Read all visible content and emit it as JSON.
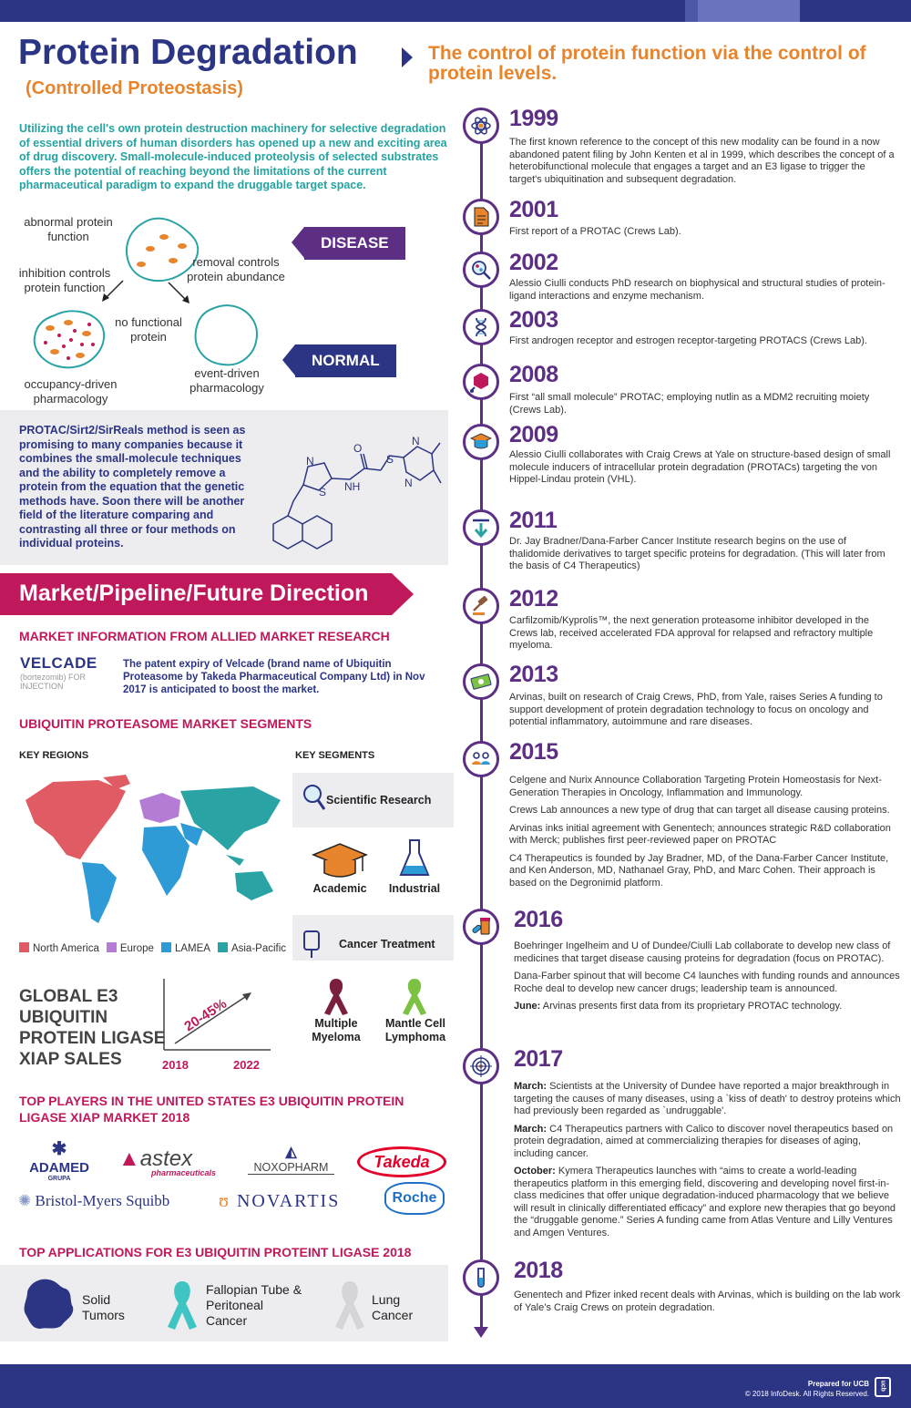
{
  "header": {
    "title": "Protein Degradation",
    "subtitle": "(Controlled Proteostasis)",
    "tagline": "The control of protein function via the control of protein levels."
  },
  "intro": "Utilizing the cell's own protein destruction machinery for selective degradation of essential drivers of human disorders has opened up a new and exciting area of drug discovery. Small-molecule-induced proteolysis of selected substrates offers the potential of reaching beyond the limitations of the current pharmaceutical paradigm to expand the druggable target space.",
  "diagram": {
    "abnormal": "abnormal protein function",
    "inhibition": "inhibition controls protein function",
    "removal": "removal controls protein abundance",
    "no_functional": "no functional protein",
    "occupancy": "occupancy-driven pharmacology",
    "event": "event-driven pharmacology",
    "disease_tag": "DISEASE",
    "normal_tag": "NORMAL"
  },
  "protac": {
    "text": "PROTAC/Sirt2/SirReals method is seen as promising to many companies because it combines the small-molecule techniques and the ability to completely remove a protein from the equation that the genetic methods have. Soon there will be another field of the literature comparing and contrasting all three or four methods on individual proteins.",
    "atoms": {
      "N1": "N",
      "N2": "N",
      "N3": "N",
      "O": "O",
      "S1": "S",
      "S2": "S",
      "NH": "NH"
    }
  },
  "market": {
    "banner": "Market/Pipeline/Future Direction",
    "allied_heading": "MARKET INFORMATION FROM ALLIED MARKET RESEARCH",
    "velcade_logo": "VELCADE",
    "velcade_sub": "(bortezomib) FOR INJECTION",
    "patent": "The patent expiry of Velcade (brand name of Ubiquitin Proteasome by Takeda Pharmaceutical Company Ltd) in Nov 2017 is anticipated to boost the market.",
    "segments_heading": "UBIQUITIN PROTEASOME MARKET SEGMENTS",
    "key_regions": "KEY REGIONS",
    "key_segments": "KEY SEGMENTS",
    "legend": [
      {
        "label": "North America",
        "color": "#e15b64"
      },
      {
        "label": "Europe",
        "color": "#b57cd6"
      },
      {
        "label": "LAMEA",
        "color": "#2f9bd6"
      },
      {
        "label": "Asia-Pacific",
        "color": "#2aa3a5"
      }
    ],
    "e3_lines": [
      "GLOBAL E3",
      "UBIQUITIN",
      "PROTEIN LIGASE",
      "XIAP SALES"
    ],
    "growth": "20-45%",
    "year_start": "2018",
    "year_end": "2022",
    "seg_scientific": "Scientific Research",
    "seg_academic": "Academic",
    "seg_industrial": "Industrial",
    "seg_cancer": "Cancer Treatment",
    "seg_myeloma": "Multiple Myeloma",
    "seg_lymphoma": "Mantle Cell Lymphoma",
    "players_heading": "TOP PLAYERS IN THE UNITED STATES E3 UBIQUITIN PROTEIN LIGASE XIAP MARKET 2018",
    "players": {
      "adamed": "ADAMED",
      "adamed_sub": "GRUPA",
      "astex": "astex",
      "astex_sub": "pharmaceuticals",
      "noxopharm": "NOXOPHARM",
      "takeda": "Takeda",
      "bms": "Bristol-Myers Squibb",
      "novartis": "NOVARTIS",
      "roche": "Roche"
    },
    "apps_heading": "TOP APPLICATIONS FOR E3 UBIQUITIN PROTEINT LIGASE 2018",
    "app_solid": "Solid Tumors",
    "app_fallopian": "Fallopian Tube & Peritoneal Cancer",
    "app_lung": "Lung Cancer"
  },
  "timeline": [
    {
      "year": "1999",
      "icon": "atom-icon",
      "paras": [
        "The first known reference to the concept of this new modality can be found in a now abandoned patent filing by John Kenten et al in 1999, which describes the concept of a heterobifunctional molecule that engages a target and an E3 ligase to trigger the target's ubiquitination and subsequent degradation."
      ]
    },
    {
      "year": "2001",
      "icon": "document-icon",
      "paras": [
        "First report of a PROTAC (Crews Lab)."
      ]
    },
    {
      "year": "2002",
      "icon": "magnifier-molecule-icon",
      "paras": [
        "Alessio Ciulli conducts PhD research on biophysical and structural studies of protein-ligand interactions and enzyme mechanism."
      ]
    },
    {
      "year": "2003",
      "icon": "dna-icon",
      "paras": [
        "First androgen receptor and estrogen receptor-targeting PROTACS (Crews Lab)."
      ]
    },
    {
      "year": "2008",
      "icon": "molecule-icon",
      "paras": [
        "First “all small molecule” PROTAC; employing nutlin as a MDM2 recruiting moiety (Crews Lab)."
      ]
    },
    {
      "year": "2009",
      "icon": "graduation-cap-icon",
      "paras": [
        "Alessio Ciulli collaborates with Craig Crews at Yale on structure-based design of small molecule inducers of intracellular protein degradation (PROTACs) targeting the von Hippel-Lindau protein (VHL)."
      ]
    },
    {
      "year": "2011",
      "icon": "down-arrow-icon",
      "paras": [
        "Dr. Jay Bradner/Dana-Farber Cancer Institute research begins on the use of thalidomide derivatives to target specific proteins for degradation. (This will later from the basis of C4 Therapeutics)"
      ]
    },
    {
      "year": "2012",
      "icon": "gavel-icon",
      "paras": [
        "Carfilzomib/Kyprolis™, the next generation proteasome inhibitor developed in the Crews lab, received accelerated FDA approval for relapsed and refractory multiple myeloma."
      ]
    },
    {
      "year": "2013",
      "icon": "money-icon",
      "paras": [
        "Arvinas, built on research of Craig Crews, PhD, from Yale, raises Series A funding to support development of protein degradation technology to focus on oncology and potential inflammatory, autoimmune and rare diseases."
      ]
    },
    {
      "year": "2015",
      "icon": "people-icon",
      "paras": [
        "Celgene and Nurix Announce Collaboration Targeting Protein Homeostasis for Next-Generation Therapies in Oncology, Inflammation and Immunology.",
        "Crews Lab announces a new type of drug that can target all disease causing proteins.",
        "Arvinas inks initial agreement with Genentech; announces strategic R&D collaboration with Merck; publishes first peer-reviewed paper on PROTAC",
        "C4 Therapeutics is founded by Jay Bradner, MD, of the Dana-Farber Cancer Institute, and Ken Anderson, MD, Nathanael Gray, PhD, and Marc Cohen. Their approach is based on the Degronimid platform."
      ]
    },
    {
      "year": "2016",
      "icon": "pill-bottle-icon",
      "paras": [
        "Boehringer Ingelheim and U of Dundee/Ciulli Lab collaborate to develop new class of medicines that target disease causing proteins for degradation (focus on PROTAC).",
        "Dana-Farber spinout that will become C4 launches with funding rounds and announces Roche deal to develop new cancer drugs; leadership team is announced.",
        "June: Arvinas presents first data from its proprietary PROTAC technology."
      ]
    },
    {
      "year": "2017",
      "icon": "target-icon",
      "paras": [
        "March: Scientists at the University of Dundee have reported a major breakthrough in targeting the causes of many diseases, using a `kiss of death' to destroy proteins which had previously been regarded as `undruggable'.",
        "March:  C4 Therapeutics partners with Calico to discover novel therapeutics based on protein degradation, aimed at commercializing therapies for diseases of aging, including cancer.",
        "October: Kymera Therapeutics launches with “aims to create a world-leading therapeutics platform in this emerging field, discovering and developing novel first-in-class medicines that offer unique degradation-induced pharmacology that we believe will result in clinically differentiated efficacy” and explore new therapies that go beyond the “druggable genome.” Series A funding came from Atlas Venture and Lilly Ventures and Amgen Ventures."
      ]
    },
    {
      "year": "2018",
      "icon": "test-tube-icon",
      "paras": [
        "Genentech and Pfizer inked recent deals with Arvinas, which is building on the lab work of Yale’s Craig Crews on protein degradation."
      ]
    }
  ],
  "footer": {
    "prepared": "Prepared for UCB",
    "copyright": "© 2018 InfoDesk.  All Rights Reserved.",
    "logo": "ucb"
  }
}
